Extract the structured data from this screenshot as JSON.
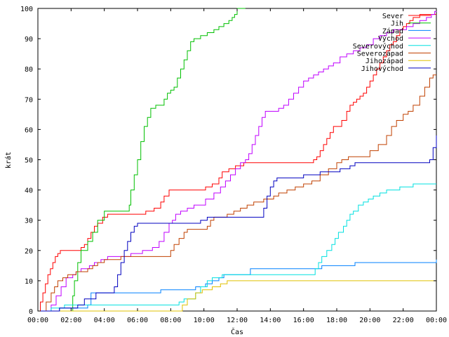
{
  "chart_data": {
    "type": "line",
    "step": true,
    "title": "",
    "xlabel": "Čas",
    "ylabel": "krát",
    "xlim": [
      0,
      24
    ],
    "ylim": [
      0,
      100
    ],
    "grid": false,
    "legend_position": "top-right",
    "x_tick_labels": [
      "00:00",
      "02:00",
      "04:00",
      "06:00",
      "08:00",
      "10:00",
      "12:00",
      "14:00",
      "16:00",
      "18:00",
      "20:00",
      "22:00",
      "00:00"
    ],
    "y_tick_labels": [
      "0",
      "10",
      "20",
      "30",
      "40",
      "50",
      "60",
      "70",
      "80",
      "90",
      "100"
    ],
    "series": [
      {
        "name": "Sever",
        "color": "#ff0000",
        "x": [
          0,
          0.15,
          0.3,
          0.45,
          0.6,
          0.75,
          0.9,
          1.05,
          1.2,
          1.35,
          1.5,
          1.7,
          2.6,
          2.8,
          3.0,
          3.2,
          3.4,
          3.6,
          3.9,
          4.2,
          4.5,
          6.5,
          7.0,
          7.4,
          7.6,
          7.9,
          9.0,
          10.1,
          10.5,
          10.9,
          11.1,
          11.5,
          11.9,
          12.4,
          13.0,
          16.6,
          16.8,
          17.0,
          17.2,
          17.4,
          17.6,
          17.8,
          18.0,
          18.3,
          18.6,
          18.8,
          19.0,
          19.2,
          19.4,
          19.6,
          19.8,
          20.0,
          20.2,
          20.4,
          20.6,
          20.8,
          21.0,
          21.2,
          21.4,
          21.6,
          21.8,
          22.0,
          22.2,
          22.4,
          22.6,
          22.8,
          23.0,
          23.3,
          23.6,
          24.0
        ],
        "y": [
          0,
          3,
          6,
          9,
          12,
          14,
          16,
          18,
          19,
          20,
          20,
          20,
          21,
          22,
          24,
          26,
          28,
          29,
          31,
          32,
          32,
          33,
          34,
          36,
          38,
          40,
          40,
          41,
          42,
          44,
          46,
          47,
          48,
          49,
          49,
          50,
          51,
          53,
          55,
          57,
          59,
          61,
          61,
          63,
          66,
          68,
          69,
          70,
          71,
          72,
          74,
          76,
          78,
          80,
          82,
          84,
          86,
          88,
          89,
          91,
          93,
          94,
          95,
          96,
          97,
          97,
          98,
          98,
          98,
          98
        ]
      },
      {
        "name": "Jih",
        "color": "#00c000",
        "x": [
          0.4,
          0.7,
          1.0,
          1.5,
          2.0,
          2.1,
          2.2,
          2.4,
          2.6,
          3.0,
          3.3,
          3.6,
          4.0,
          4.4,
          5.5,
          5.6,
          5.8,
          6.0,
          6.2,
          6.4,
          6.6,
          6.8,
          7.1,
          7.4,
          7.6,
          7.8,
          8.0,
          8.2,
          8.4,
          8.6,
          8.8,
          9.0,
          9.2,
          9.4,
          9.8,
          10.2,
          10.6,
          10.9,
          11.2,
          11.5,
          11.7,
          11.85,
          12.0,
          12.5
        ],
        "y": [
          0,
          0,
          0,
          0,
          0,
          5,
          10,
          16,
          20,
          23,
          26,
          30,
          33,
          33,
          35,
          40,
          45,
          50,
          56,
          61,
          64,
          67,
          68,
          68,
          70,
          72,
          73,
          74,
          77,
          80,
          83,
          86,
          89,
          90,
          91,
          92,
          93,
          94,
          95,
          96,
          97,
          98,
          100,
          100
        ]
      },
      {
        "name": "Západ",
        "color": "#0080ff",
        "x": [
          0,
          1.3,
          1.6,
          3.0,
          3.2,
          4.2,
          5.6,
          6.8,
          7.4,
          8.0,
          9.5,
          10.1,
          10.5,
          10.9,
          11.2,
          12.8,
          16.0,
          17.1,
          18.2,
          19.1,
          20.0,
          21.0,
          22.0,
          23.0,
          23.9,
          24.0
        ],
        "y": [
          0,
          1,
          1,
          2,
          6,
          6,
          6,
          6,
          7,
          7,
          8,
          9,
          10,
          11,
          12,
          14,
          14,
          15,
          15,
          16,
          16,
          16,
          16,
          16,
          16,
          17
        ]
      },
      {
        "name": "Východ",
        "color": "#c000ff",
        "x": [
          0.5,
          0.8,
          1.1,
          1.4,
          1.7,
          2.1,
          2.3,
          2.6,
          3.1,
          3.4,
          3.8,
          4.2,
          4.6,
          5.1,
          5.6,
          6.3,
          6.9,
          7.3,
          7.6,
          7.9,
          8.1,
          8.3,
          8.6,
          9.0,
          9.4,
          9.8,
          10.1,
          10.6,
          11.0,
          11.3,
          11.6,
          11.9,
          12.2,
          12.5,
          12.7,
          12.9,
          13.1,
          13.3,
          13.5,
          13.7,
          13.9,
          14.2,
          14.5,
          14.8,
          15.1,
          15.4,
          15.7,
          16.0,
          16.3,
          16.6,
          16.9,
          17.2,
          17.5,
          17.8,
          18.2,
          18.6,
          19.0,
          19.4,
          19.8,
          20.2,
          20.6,
          21.0,
          21.4,
          21.8,
          22.2,
          22.6,
          23.0,
          23.4,
          23.7,
          23.9,
          24.0
        ],
        "y": [
          0,
          2,
          5,
          8,
          11,
          12,
          13,
          14,
          15,
          16,
          17,
          18,
          18,
          18,
          19,
          20,
          21,
          23,
          26,
          29,
          30,
          32,
          33,
          34,
          35,
          35,
          37,
          39,
          41,
          43,
          45,
          47,
          49,
          50,
          52,
          55,
          58,
          61,
          64,
          66,
          66,
          66,
          67,
          68,
          70,
          72,
          74,
          76,
          77,
          78,
          79,
          80,
          81,
          82,
          84,
          85,
          86,
          87,
          88,
          90,
          91,
          92,
          93,
          93,
          94,
          95,
          96,
          97,
          98,
          99,
          100
        ]
      },
      {
        "name": "Severovýchod",
        "color": "#00e0e0",
        "x": [
          0,
          0.8,
          1.4,
          1.6,
          3.1,
          3.3,
          6.0,
          7.5,
          8.3,
          8.5,
          8.8,
          9.5,
          9.8,
          10.2,
          10.5,
          10.9,
          11.1,
          12.8,
          14.0,
          15.0,
          16.0,
          16.5,
          16.7,
          16.9,
          17.1,
          17.4,
          17.7,
          17.9,
          18.1,
          18.4,
          18.6,
          18.8,
          19.0,
          19.3,
          19.6,
          19.9,
          20.2,
          20.6,
          21.0,
          21.4,
          21.8,
          22.2,
          22.6,
          23.0,
          24.0
        ],
        "y": [
          0,
          1,
          1,
          2,
          2,
          2,
          2,
          2,
          2,
          3,
          4,
          6,
          8,
          10,
          11,
          11,
          12,
          12,
          12,
          12,
          12,
          12,
          14,
          16,
          18,
          20,
          22,
          24,
          26,
          28,
          30,
          32,
          33,
          35,
          36,
          37,
          38,
          39,
          40,
          40,
          41,
          41,
          42,
          42,
          42
        ]
      },
      {
        "name": "Severozápad",
        "color": "#c04000",
        "x": [
          0,
          0.5,
          0.8,
          1.0,
          1.2,
          1.5,
          1.8,
          2.0,
          2.3,
          2.7,
          3.0,
          3.3,
          3.6,
          4.0,
          5.0,
          6.0,
          7.0,
          7.5,
          8.0,
          8.2,
          8.5,
          8.8,
          9.0,
          10.2,
          10.4,
          10.6,
          11.0,
          11.4,
          11.8,
          12.2,
          12.6,
          13.0,
          13.6,
          14.2,
          14.5,
          15.0,
          15.5,
          16.0,
          16.5,
          17.0,
          17.5,
          18.0,
          18.3,
          18.7,
          19.1,
          19.6,
          20.0,
          20.5,
          21.0,
          21.3,
          21.6,
          22.0,
          22.3,
          22.6,
          23.0,
          23.3,
          23.6,
          23.8,
          24.0
        ],
        "y": [
          0,
          3,
          6,
          8,
          10,
          11,
          12,
          12,
          13,
          13,
          14,
          15,
          16,
          17,
          18,
          18,
          18,
          18,
          20,
          22,
          24,
          26,
          27,
          28,
          30,
          31,
          31,
          32,
          33,
          34,
          35,
          36,
          37,
          38,
          39,
          40,
          41,
          42,
          43,
          45,
          47,
          49,
          50,
          51,
          51,
          51,
          53,
          55,
          58,
          61,
          63,
          65,
          66,
          68,
          71,
          74,
          77,
          78,
          78
        ]
      },
      {
        "name": "Jihozápad",
        "color": "#e0c000",
        "x": [
          0,
          6.0,
          8.5,
          8.7,
          9.0,
          9.5,
          9.9,
          10.5,
          11.0,
          11.4,
          12.0,
          14.0,
          16.0,
          18.0,
          20.0,
          22.0,
          24.0
        ],
        "y": [
          0,
          0,
          0,
          2,
          4,
          6,
          7,
          8,
          9,
          10,
          10,
          10,
          10,
          10,
          10,
          10,
          10
        ]
      },
      {
        "name": "Jihovýchod",
        "color": "#0000c0",
        "x": [
          0,
          1.3,
          2.4,
          2.8,
          3.5,
          4.0,
          4.6,
          4.8,
          5.0,
          5.2,
          5.4,
          5.6,
          5.8,
          6.0,
          7.2,
          9.0,
          9.8,
          10.2,
          10.6,
          11.0,
          11.4,
          11.8,
          12.4,
          13.4,
          13.6,
          13.8,
          14.0,
          14.2,
          14.4,
          14.6,
          15.0,
          15.5,
          16.0,
          16.5,
          17.0,
          17.6,
          18.2,
          18.8,
          19.1,
          20.0,
          21.0,
          22.0,
          23.0,
          23.6,
          23.8,
          24.0
        ],
        "y": [
          0,
          1,
          2,
          4,
          6,
          6,
          8,
          12,
          16,
          20,
          23,
          26,
          28,
          29,
          29,
          29,
          30,
          31,
          31,
          31,
          31,
          31,
          31,
          31,
          34,
          38,
          41,
          43,
          44,
          44,
          44,
          44,
          45,
          45,
          46,
          46,
          47,
          48,
          49,
          49,
          49,
          49,
          49,
          50,
          54,
          58
        ]
      }
    ]
  }
}
